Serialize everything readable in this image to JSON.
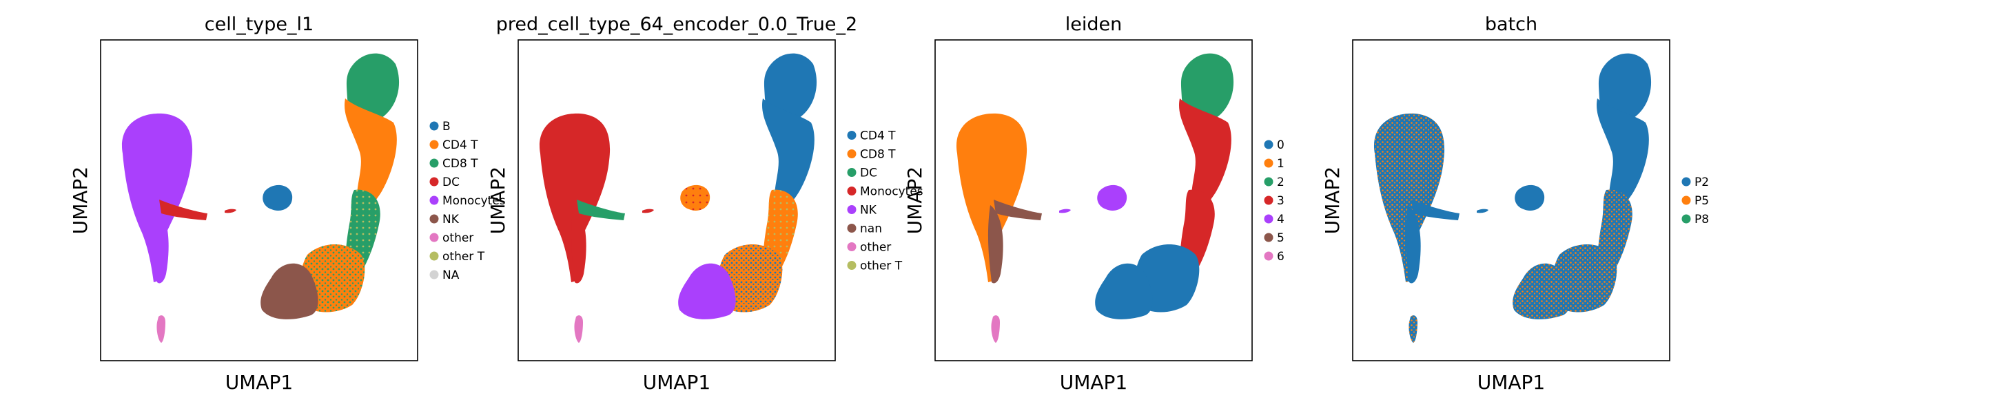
{
  "chart_data": [
    {
      "type": "scatter",
      "title": "cell_type_l1",
      "xlabel": "UMAP1",
      "ylabel": "UMAP2",
      "grid": false,
      "legend_placement": "right",
      "legend": [
        {
          "name": "B",
          "color": "#1f77b4"
        },
        {
          "name": "CD4 T",
          "color": "#ff7f0e"
        },
        {
          "name": "CD8 T",
          "color": "#279e68"
        },
        {
          "name": "DC",
          "color": "#d62728"
        },
        {
          "name": "Monocytes",
          "color": "#aa40fc"
        },
        {
          "name": "NK",
          "color": "#8c564b"
        },
        {
          "name": "other",
          "color": "#e377c2"
        },
        {
          "name": "other T",
          "color": "#b5bd61"
        },
        {
          "name": "NA",
          "color": "#d3d3d3"
        }
      ],
      "regions": [
        {
          "name": "Monocytes",
          "cluster": "mono_body"
        },
        {
          "name": "Monocytes",
          "cluster": "mono_tail"
        },
        {
          "name": "DC",
          "cluster": "mono_stream"
        },
        {
          "name": "DC",
          "cluster": "speck"
        },
        {
          "name": "B",
          "cluster": "b_island"
        },
        {
          "name": "CD8 T",
          "cluster": "t_top"
        },
        {
          "name": "CD4 T",
          "cluster": "t_upper"
        },
        {
          "name": "CD8 T",
          "cluster": "t_mid"
        },
        {
          "name": "other T",
          "cluster": "t_mid"
        },
        {
          "name": "CD4 T",
          "cluster": "t_lower"
        },
        {
          "name": "CD8 T",
          "cluster": "t_lower"
        },
        {
          "name": "NK",
          "cluster": "nk_base"
        },
        {
          "name": "other",
          "cluster": "other_island"
        }
      ]
    },
    {
      "type": "scatter",
      "title": "pred_cell_type_64_encoder_0.0_True_2",
      "xlabel": "UMAP1",
      "ylabel": "UMAP2",
      "grid": false,
      "legend_placement": "right",
      "legend": [
        {
          "name": "CD4 T",
          "color": "#1f77b4"
        },
        {
          "name": "CD8 T",
          "color": "#ff7f0e"
        },
        {
          "name": "DC",
          "color": "#279e68"
        },
        {
          "name": "Monocytes",
          "color": "#d62728"
        },
        {
          "name": "NK",
          "color": "#aa40fc"
        },
        {
          "name": "nan",
          "color": "#8c564b"
        },
        {
          "name": "other",
          "color": "#e377c2"
        },
        {
          "name": "other T",
          "color": "#b5bd61"
        }
      ],
      "regions": [
        {
          "name": "Monocytes",
          "cluster": "mono_body"
        },
        {
          "name": "Monocytes",
          "cluster": "mono_tail"
        },
        {
          "name": "DC",
          "cluster": "mono_stream"
        },
        {
          "name": "Monocytes",
          "cluster": "speck"
        },
        {
          "name": "CD8 T",
          "cluster": "b_island"
        },
        {
          "name": "Monocytes",
          "cluster": "b_island"
        },
        {
          "name": "CD4 T",
          "cluster": "t_top"
        },
        {
          "name": "CD4 T",
          "cluster": "t_upper"
        },
        {
          "name": "CD8 T",
          "cluster": "t_mid"
        },
        {
          "name": "other T",
          "cluster": "t_mid"
        },
        {
          "name": "CD8 T",
          "cluster": "t_lower"
        },
        {
          "name": "CD4 T",
          "cluster": "t_lower"
        },
        {
          "name": "NK",
          "cluster": "nk_base"
        },
        {
          "name": "other",
          "cluster": "other_island"
        }
      ]
    },
    {
      "type": "scatter",
      "title": "leiden",
      "xlabel": "UMAP1",
      "ylabel": "UMAP2",
      "grid": false,
      "legend_placement": "right",
      "legend": [
        {
          "name": "0",
          "color": "#1f77b4"
        },
        {
          "name": "1",
          "color": "#ff7f0e"
        },
        {
          "name": "2",
          "color": "#279e68"
        },
        {
          "name": "3",
          "color": "#d62728"
        },
        {
          "name": "4",
          "color": "#aa40fc"
        },
        {
          "name": "5",
          "color": "#8c564b"
        },
        {
          "name": "6",
          "color": "#e377c2"
        }
      ],
      "regions": [
        {
          "name": "1",
          "cluster": "mono_body"
        },
        {
          "name": "5",
          "cluster": "mono_tail"
        },
        {
          "name": "5",
          "cluster": "mono_stream"
        },
        {
          "name": "4",
          "cluster": "speck"
        },
        {
          "name": "4",
          "cluster": "b_island"
        },
        {
          "name": "2",
          "cluster": "t_top"
        },
        {
          "name": "3",
          "cluster": "t_upper"
        },
        {
          "name": "3",
          "cluster": "t_mid"
        },
        {
          "name": "0",
          "cluster": "t_lower"
        },
        {
          "name": "0",
          "cluster": "nk_base"
        },
        {
          "name": "6",
          "cluster": "other_island"
        }
      ]
    },
    {
      "type": "scatter",
      "title": "batch",
      "xlabel": "UMAP1",
      "ylabel": "UMAP2",
      "grid": false,
      "legend_placement": "right",
      "legend": [
        {
          "name": "P2",
          "color": "#1f77b4"
        },
        {
          "name": "P5",
          "color": "#ff7f0e"
        },
        {
          "name": "P8",
          "color": "#279e68"
        }
      ],
      "regions": [
        {
          "name": "P2",
          "cluster": "mono_body"
        },
        {
          "name": "P5",
          "cluster": "mono_body"
        },
        {
          "name": "P2",
          "cluster": "mono_tail"
        },
        {
          "name": "P2",
          "cluster": "mono_stream"
        },
        {
          "name": "P2",
          "cluster": "speck"
        },
        {
          "name": "P2",
          "cluster": "b_island"
        },
        {
          "name": "P2",
          "cluster": "t_top"
        },
        {
          "name": "P2",
          "cluster": "t_upper"
        },
        {
          "name": "P2",
          "cluster": "t_mid"
        },
        {
          "name": "P5",
          "cluster": "t_mid"
        },
        {
          "name": "P2",
          "cluster": "t_lower"
        },
        {
          "name": "P5",
          "cluster": "t_lower"
        },
        {
          "name": "P2",
          "cluster": "nk_base"
        },
        {
          "name": "P5",
          "cluster": "nk_base"
        },
        {
          "name": "P2",
          "cluster": "other_island"
        },
        {
          "name": "P5",
          "cluster": "other_island"
        }
      ]
    }
  ]
}
